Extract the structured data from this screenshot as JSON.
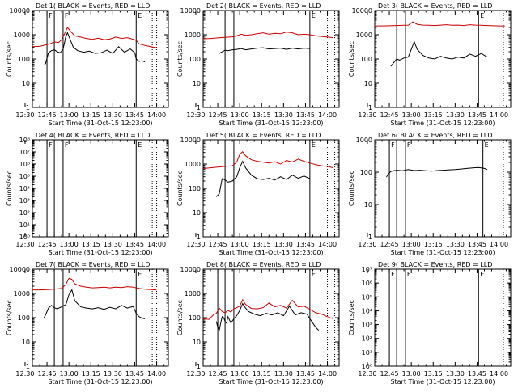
{
  "page": {
    "background": "#ffffff",
    "event_color": "#000000",
    "lld_color": "#cc0000"
  },
  "x_tick_labels": [
    "12:30",
    "12:45",
    "13:00",
    "13:15",
    "13:30",
    "13:45",
    "14:00"
  ],
  "ylabel": "Counts/sec",
  "xlabel": "Start Time (31-Oct-15 12:23:00)",
  "chart_data": [
    {
      "type": "line",
      "title": "Det 1( BLACK = Events, RED = LLD",
      "xlim": [
        5,
        98
      ],
      "yscale": "log",
      "ylim": [
        1,
        10000
      ],
      "y_tick_labels": [
        "1",
        "10",
        "100",
        "1000",
        "10000"
      ],
      "markers": [
        {
          "x": 15,
          "label": "F"
        },
        {
          "x": 20
        },
        {
          "x": 26,
          "label": "F"
        },
        {
          "x": 76,
          "label": "E"
        }
      ],
      "dotted": [
        87,
        90
      ],
      "series": [
        {
          "color": "red",
          "x": [
            5,
            10,
            14,
            17,
            20,
            23,
            25,
            27,
            29,
            31,
            34,
            38,
            42,
            46,
            50,
            54,
            58,
            62,
            66,
            70,
            74,
            76,
            78,
            82,
            86,
            90
          ],
          "y": [
            320,
            330,
            380,
            420,
            500,
            480,
            620,
            1100,
            2000,
            1400,
            900,
            800,
            700,
            640,
            720,
            620,
            660,
            800,
            700,
            760,
            650,
            580,
            420,
            360,
            320,
            290
          ]
        },
        {
          "color": "black",
          "x": [
            13,
            14,
            16,
            18,
            20,
            22,
            24,
            26,
            28,
            29,
            31,
            33,
            36,
            40,
            44,
            48,
            52,
            56,
            60,
            64,
            68,
            72,
            75,
            76,
            78,
            80,
            82
          ],
          "y": [
            55,
            65,
            180,
            220,
            240,
            200,
            180,
            250,
            900,
            1200,
            600,
            300,
            220,
            190,
            210,
            170,
            180,
            230,
            170,
            320,
            190,
            260,
            180,
            100,
            80,
            85,
            75
          ]
        }
      ]
    },
    {
      "type": "line",
      "title": "Det 2( BLACK = Events, RED = LLD",
      "xlim": [
        5,
        98
      ],
      "yscale": "log",
      "ylim": [
        1,
        10000
      ],
      "y_tick_labels": [
        "1",
        "10",
        "100",
        "1000",
        "10000"
      ],
      "markers": [
        {
          "x": 20
        },
        {
          "x": 26
        },
        {
          "x": 78,
          "label": "E"
        }
      ],
      "dotted": [
        90,
        95
      ],
      "series": [
        {
          "color": "red",
          "x": [
            5,
            10,
            15,
            20,
            25,
            28,
            31,
            34,
            38,
            42,
            46,
            50,
            54,
            58,
            62,
            66,
            70,
            74,
            78,
            82,
            86,
            90,
            94
          ],
          "y": [
            680,
            700,
            740,
            780,
            820,
            900,
            1050,
            950,
            1000,
            1100,
            1200,
            1050,
            1150,
            1100,
            1300,
            1200,
            1000,
            1050,
            1000,
            900,
            850,
            800,
            760
          ]
        },
        {
          "color": "black",
          "x": [
            16,
            18,
            20,
            22,
            25,
            28,
            31,
            34,
            38,
            42,
            46,
            50,
            54,
            58,
            62,
            66,
            70,
            74,
            78
          ],
          "y": [
            170,
            200,
            230,
            220,
            240,
            250,
            270,
            240,
            260,
            280,
            290,
            260,
            270,
            280,
            250,
            280,
            260,
            280,
            270
          ]
        }
      ]
    },
    {
      "type": "line",
      "title": "Det 3( BLACK = Events, RED = LLD",
      "xlim": [
        5,
        98
      ],
      "yscale": "log",
      "ylim": [
        1,
        10000
      ],
      "y_tick_labels": [
        "1",
        "10",
        "100",
        "1000",
        "10000"
      ],
      "markers": [
        {
          "x": 20
        },
        {
          "x": 26
        },
        {
          "x": 76,
          "label": "E"
        }
      ],
      "dotted": [
        90,
        93
      ],
      "series": [
        {
          "color": "red",
          "x": [
            5,
            10,
            15,
            20,
            25,
            28,
            31,
            34,
            38,
            42,
            46,
            50,
            54,
            58,
            62,
            66,
            70,
            74,
            78,
            82,
            86,
            90,
            94
          ],
          "y": [
            2300,
            2300,
            2350,
            2400,
            2450,
            2500,
            3400,
            2700,
            2500,
            2450,
            2400,
            2500,
            2600,
            2450,
            2500,
            2400,
            2600,
            2500,
            2450,
            2400,
            2350,
            2300,
            2300
          ]
        },
        {
          "color": "black",
          "x": [
            16,
            18,
            20,
            22,
            25,
            28,
            30,
            32,
            34,
            38,
            42,
            46,
            50,
            54,
            58,
            62,
            66,
            70,
            74,
            78,
            80,
            82
          ],
          "y": [
            50,
            70,
            100,
            90,
            110,
            120,
            250,
            520,
            250,
            140,
            110,
            100,
            130,
            110,
            100,
            120,
            110,
            160,
            130,
            170,
            140,
            120
          ]
        }
      ]
    },
    {
      "type": "line",
      "title": "Det 4( BLACK = Events, RED = LLD",
      "xlim": [
        5,
        98
      ],
      "yscale": "log",
      "ylim": [
        1,
        100000000
      ],
      "y_tick_labels": [
        "10⁰",
        "10¹",
        "10²",
        "10³",
        "10⁴",
        "10⁵",
        "10⁶",
        "10⁷",
        "10⁸"
      ],
      "markers": [
        {
          "x": 15,
          "label": "F"
        },
        {
          "x": 20
        },
        {
          "x": 26,
          "label": "F"
        },
        {
          "x": 76,
          "label": "E"
        }
      ],
      "dotted": [
        87,
        90
      ],
      "series": []
    },
    {
      "type": "line",
      "title": "Det 5( BLACK = Events, RED = LLD",
      "xlim": [
        5,
        98
      ],
      "yscale": "log",
      "ylim": [
        1,
        10000
      ],
      "y_tick_labels": [
        "1",
        "10",
        "100",
        "1000",
        "10000"
      ],
      "markers": [
        {
          "x": 20
        },
        {
          "x": 26
        },
        {
          "x": 78,
          "label": "E"
        }
      ],
      "dotted": [
        90,
        95
      ],
      "series": [
        {
          "color": "red",
          "x": [
            5,
            10,
            15,
            20,
            25,
            28,
            30,
            32,
            34,
            38,
            42,
            46,
            50,
            54,
            58,
            62,
            66,
            70,
            74,
            78,
            82,
            86,
            90,
            94
          ],
          "y": [
            650,
            700,
            750,
            800,
            850,
            1200,
            2500,
            3200,
            2200,
            1500,
            1300,
            1200,
            1100,
            1250,
            1000,
            1400,
            1200,
            1600,
            1300,
            1100,
            950,
            850,
            800,
            700
          ]
        },
        {
          "color": "black",
          "x": [
            14,
            16,
            18,
            20,
            22,
            25,
            28,
            30,
            32,
            34,
            38,
            42,
            46,
            50,
            54,
            58,
            62,
            66,
            70,
            74,
            78
          ],
          "y": [
            45,
            60,
            250,
            220,
            180,
            200,
            300,
            700,
            1300,
            700,
            350,
            250,
            230,
            260,
            220,
            300,
            230,
            350,
            260,
            320,
            250
          ]
        }
      ]
    },
    {
      "type": "line",
      "title": "Det 6( BLACK = Events, RED = LLD",
      "xlim": [
        5,
        98
      ],
      "yscale": "log",
      "ylim": [
        1,
        1000
      ],
      "y_tick_labels": [
        "1",
        "10",
        "100",
        "1000"
      ],
      "markers": [
        {
          "x": 15,
          "label": "F"
        },
        {
          "x": 20
        },
        {
          "x": 26,
          "label": "F"
        },
        {
          "x": 79,
          "label": "E"
        }
      ],
      "dotted": [
        90,
        93
      ],
      "series": [
        {
          "color": "black",
          "x": [
            13,
            14,
            16,
            18,
            20,
            24,
            28,
            32,
            36,
            40,
            44,
            48,
            52,
            56,
            60,
            64,
            68,
            72,
            76,
            80,
            82
          ],
          "y": [
            70,
            85,
            105,
            110,
            115,
            110,
            120,
            112,
            115,
            110,
            108,
            112,
            115,
            118,
            120,
            125,
            130,
            135,
            140,
            130,
            120
          ]
        }
      ]
    },
    {
      "type": "line",
      "title": "Det 7( BLACK = Events, RED = LLD",
      "xlim": [
        5,
        98
      ],
      "yscale": "log",
      "ylim": [
        1,
        10000
      ],
      "y_tick_labels": [
        "1",
        "10",
        "100",
        "1000",
        "10000"
      ],
      "markers": [
        {
          "x": 20
        },
        {
          "x": 26
        },
        {
          "x": 76,
          "label": "E"
        }
      ],
      "dotted": [
        87,
        90
      ],
      "series": [
        {
          "color": "red",
          "x": [
            5,
            10,
            15,
            20,
            25,
            28,
            30,
            32,
            34,
            38,
            42,
            46,
            50,
            54,
            58,
            62,
            66,
            70,
            74,
            78,
            82,
            86,
            90
          ],
          "y": [
            1400,
            1400,
            1450,
            1500,
            1600,
            2400,
            4200,
            3800,
            2500,
            2000,
            1800,
            1700,
            1750,
            1800,
            1700,
            1800,
            1750,
            1900,
            1800,
            1600,
            1500,
            1450,
            1400
          ]
        },
        {
          "color": "black",
          "x": [
            13,
            14,
            16,
            18,
            20,
            22,
            25,
            28,
            30,
            32,
            34,
            38,
            42,
            46,
            50,
            54,
            58,
            62,
            66,
            70,
            74,
            76,
            78,
            80,
            82
          ],
          "y": [
            100,
            130,
            250,
            320,
            260,
            230,
            280,
            350,
            900,
            1400,
            500,
            280,
            250,
            230,
            260,
            220,
            270,
            230,
            320,
            250,
            290,
            150,
            110,
            95,
            90
          ]
        }
      ]
    },
    {
      "type": "line",
      "title": "Det 8( BLACK = Events, RED = LLD",
      "xlim": [
        5,
        98
      ],
      "yscale": "log",
      "ylim": [
        1,
        10000
      ],
      "y_tick_labels": [
        "1",
        "10",
        "100",
        "1000",
        "10000"
      ],
      "markers": [
        {
          "x": 15
        },
        {
          "x": 20
        },
        {
          "x": 26
        },
        {
          "x": 78,
          "label": "E"
        }
      ],
      "dotted": [
        90,
        95
      ],
      "series": [
        {
          "color": "red",
          "x": [
            5,
            9,
            12,
            14,
            16,
            18,
            20,
            22,
            24,
            26,
            28,
            30,
            32,
            34,
            38,
            42,
            46,
            50,
            54,
            58,
            62,
            66,
            70,
            74,
            78,
            82,
            86,
            90,
            94
          ],
          "y": [
            90,
            85,
            130,
            150,
            250,
            180,
            160,
            200,
            170,
            230,
            260,
            300,
            550,
            350,
            240,
            230,
            260,
            400,
            280,
            320,
            250,
            520,
            280,
            300,
            220,
            160,
            140,
            110,
            90
          ]
        },
        {
          "color": "black",
          "x": [
            14,
            15,
            16,
            17,
            18,
            19,
            20,
            21,
            22,
            24,
            26,
            28,
            30,
            32,
            34,
            36,
            40,
            44,
            48,
            52,
            56,
            60,
            64,
            68,
            72,
            76,
            78,
            80,
            82,
            84
          ],
          "y": [
            70,
            40,
            30,
            60,
            110,
            100,
            70,
            60,
            110,
            60,
            90,
            120,
            200,
            380,
            250,
            180,
            140,
            120,
            150,
            130,
            160,
            120,
            300,
            130,
            160,
            140,
            90,
            60,
            40,
            30
          ]
        }
      ]
    },
    {
      "type": "line",
      "title": "Det 9( BLACK = Events, RED = LLD",
      "xlim": [
        5,
        98
      ],
      "yscale": "log",
      "ylim": [
        1,
        10000000
      ],
      "y_tick_labels": [
        "10⁰",
        "10¹",
        "10²",
        "10³",
        "10⁴",
        "10⁵",
        "10⁶",
        "10⁷"
      ],
      "markers": [
        {
          "x": 15,
          "label": "F"
        },
        {
          "x": 20
        },
        {
          "x": 26,
          "label": "F"
        },
        {
          "x": 76,
          "label": "E"
        }
      ],
      "dotted": [
        90,
        93
      ],
      "series": []
    }
  ]
}
